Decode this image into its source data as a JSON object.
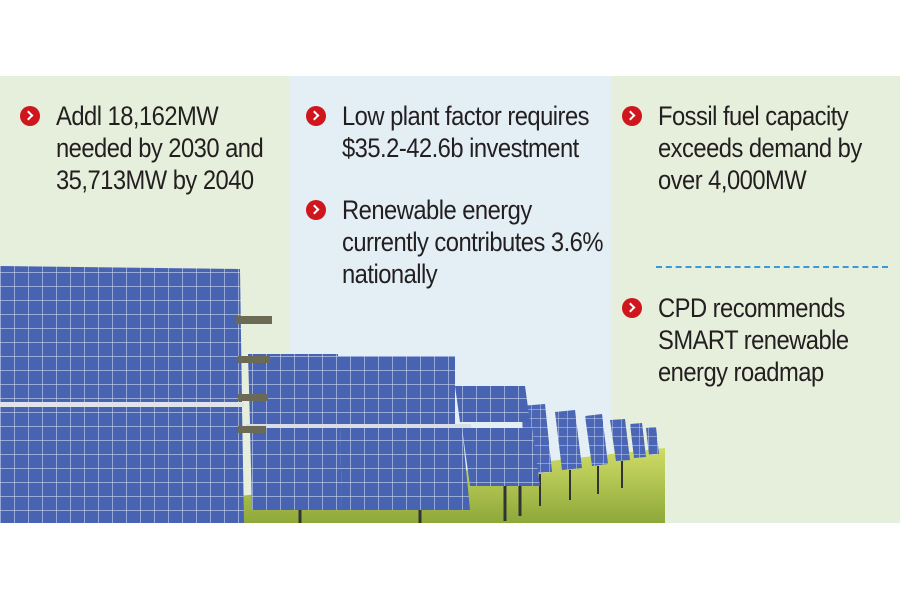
{
  "bullets": {
    "col1": [
      {
        "text": "Addl 18,162MW needed by 2030 and 35,713MW by 2040"
      }
    ],
    "col2": [
      {
        "text": "Low plant factor requires $35.2-42.6b investment"
      },
      {
        "text": "Renewable energy currently contributes 3.6% nationally"
      }
    ],
    "col3": [
      {
        "text": "Fossil fuel capacity exceeds demand by over 4,000MW"
      },
      {
        "text": "CPD recommends SMART renewable energy roadmap"
      }
    ]
  },
  "colors": {
    "bullet": "#d0161d",
    "text": "#231f20",
    "panel_green": "#e6eedc",
    "panel_blue": "#e3eef5",
    "divider": "#3a9ad9",
    "solar_panel": "#3d5aa8",
    "grass": "#b8c94a"
  },
  "icons": {
    "bullet": "chevron-right-circle-icon"
  }
}
